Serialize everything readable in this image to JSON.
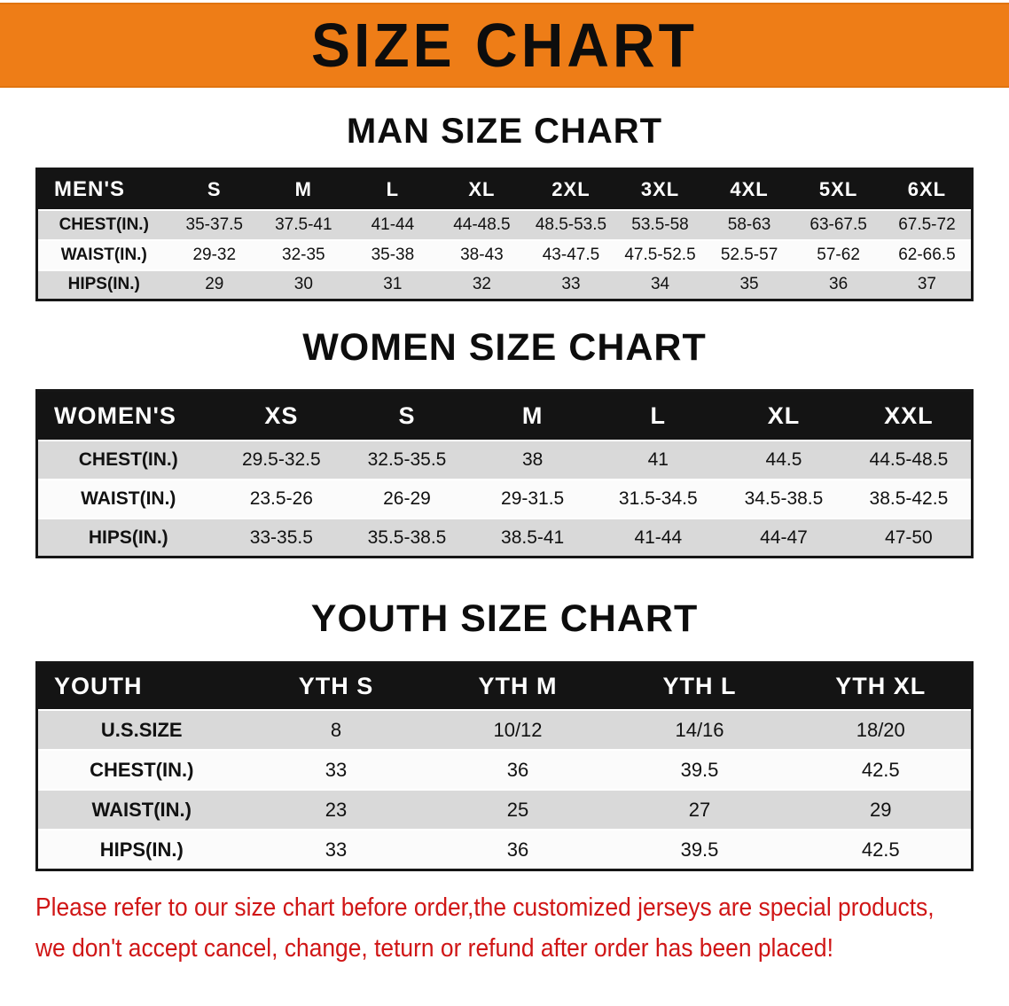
{
  "banner": {
    "title": "SIZE CHART"
  },
  "men": {
    "heading": "MAN SIZE CHART",
    "header": [
      "MEN'S",
      "S",
      "M",
      "L",
      "XL",
      "2XL",
      "3XL",
      "4XL",
      "5XL",
      "6XL"
    ],
    "rows": [
      {
        "label": "CHEST(IN.)",
        "values": [
          "35-37.5",
          "37.5-41",
          "41-44",
          "44-48.5",
          "48.5-53.5",
          "53.5-58",
          "58-63",
          "63-67.5",
          "67.5-72"
        ]
      },
      {
        "label": "WAIST(IN.)",
        "values": [
          "29-32",
          "32-35",
          "35-38",
          "38-43",
          "43-47.5",
          "47.5-52.5",
          "52.5-57",
          "57-62",
          "62-66.5"
        ]
      },
      {
        "label": "HIPS(IN.)",
        "values": [
          "29",
          "30",
          "31",
          "32",
          "33",
          "34",
          "35",
          "36",
          "37"
        ]
      }
    ]
  },
  "women": {
    "heading": "WOMEN SIZE CHART",
    "header": [
      "WOMEN'S",
      "XS",
      "S",
      "M",
      "L",
      "XL",
      "XXL"
    ],
    "rows": [
      {
        "label": "CHEST(IN.)",
        "values": [
          "29.5-32.5",
          "32.5-35.5",
          "38",
          "41",
          "44.5",
          "44.5-48.5"
        ]
      },
      {
        "label": "WAIST(IN.)",
        "values": [
          "23.5-26",
          "26-29",
          "29-31.5",
          "31.5-34.5",
          "34.5-38.5",
          "38.5-42.5"
        ]
      },
      {
        "label": "HIPS(IN.)",
        "values": [
          "33-35.5",
          "35.5-38.5",
          "38.5-41",
          "41-44",
          "44-47",
          "47-50"
        ]
      }
    ]
  },
  "youth": {
    "heading": "YOUTH SIZE CHART",
    "header": [
      "YOUTH",
      "YTH S",
      "YTH M",
      "YTH L",
      "YTH XL"
    ],
    "rows": [
      {
        "label": "U.S.SIZE",
        "values": [
          "8",
          "10/12",
          "14/16",
          "18/20"
        ]
      },
      {
        "label": "CHEST(IN.)",
        "values": [
          "33",
          "36",
          "39.5",
          "42.5"
        ]
      },
      {
        "label": "WAIST(IN.)",
        "values": [
          "23",
          "25",
          "27",
          "29"
        ]
      },
      {
        "label": "HIPS(IN.)",
        "values": [
          "33",
          "36",
          "39.5",
          "42.5"
        ]
      }
    ]
  },
  "disclaimer": {
    "line1": "Please refer to our size chart before order,the customized jerseys are special products,",
    "line2": "we don't accept cancel, change, teturn or refund after order has been placed!"
  },
  "colors": {
    "banner_orange": "#ee7d17",
    "header_black": "#141414",
    "row_gray": "#d9d9d9",
    "row_white": "#fbfbfb",
    "disclaimer_red": "#d01616"
  }
}
